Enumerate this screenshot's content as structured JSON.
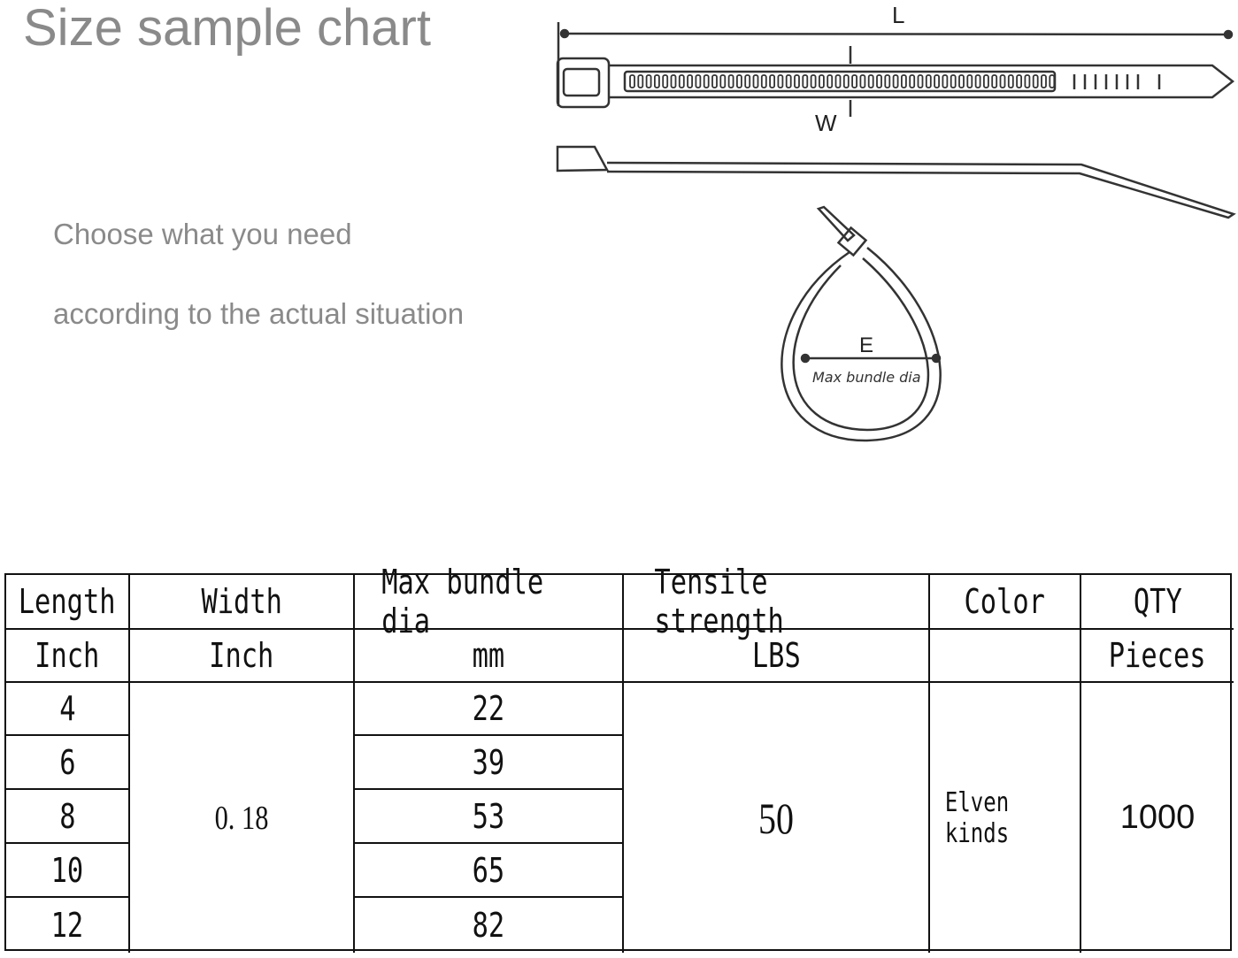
{
  "title": "Size sample chart",
  "subtitle_lines": [
    "Choose what you need",
    "according to the actual situation"
  ],
  "diagram": {
    "length_label": "L",
    "width_label": "W",
    "bundle_label": "E",
    "bundle_caption": "Max bundle dia"
  },
  "table": {
    "headers": [
      "Length",
      "Width",
      "Max bundle dia",
      "Tensile strength",
      "Color",
      "QTY"
    ],
    "units": [
      "Inch",
      "Inch",
      "mm",
      "LBS",
      "",
      "Pieces"
    ],
    "lengths": [
      "4",
      "6",
      "8",
      "10",
      "12"
    ],
    "width": "0. 18",
    "bundle_dia": [
      "22",
      "39",
      "53",
      "65",
      "82"
    ],
    "tensile": "50",
    "color": "Elven kinds",
    "qty": "1000"
  }
}
